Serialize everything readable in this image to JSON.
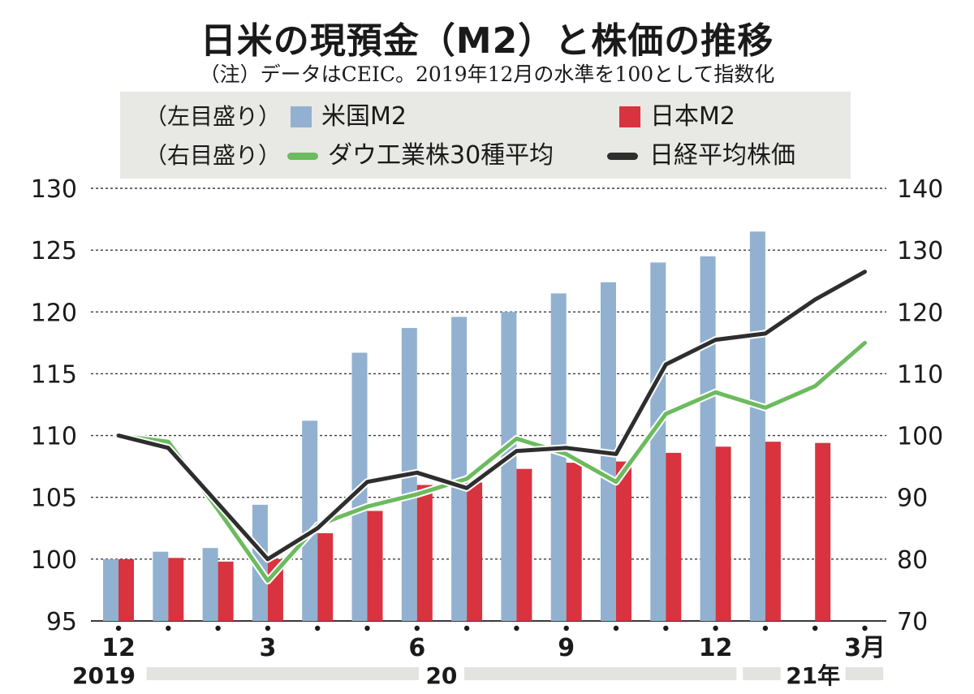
{
  "title": "日米の現預金（M2）と株価の推移",
  "note": "（注）データはCEIC。2019年12月の水準を100として指数化",
  "legend": {
    "left_axis_label": "（左目盛り）",
    "right_axis_label": "（右目盛り）",
    "us_m2": "米国M2",
    "jp_m2": "日本M2",
    "dow": "ダウ工業株30種平均",
    "nikkei": "日経平均株価"
  },
  "colors": {
    "us_m2": "#92b1d0",
    "jp_m2": "#d9333f",
    "dow": "#6cbb5e",
    "nikkei": "#2e2e2e",
    "grid": "#3a3a3a",
    "year_bar": "#e3e3df"
  },
  "chart_data": {
    "type": "bar+line",
    "title": "日米の現預金（M2）と株価の推移",
    "x": [
      "2019-12",
      "2020-01",
      "2020-02",
      "2020-03",
      "2020-04",
      "2020-05",
      "2020-06",
      "2020-07",
      "2020-08",
      "2020-09",
      "2020-10",
      "2020-11",
      "2020-12",
      "2021-01",
      "2021-02",
      "2021-03"
    ],
    "x_tick_labels": [
      {
        "index": 0,
        "label": "12"
      },
      {
        "index": 3,
        "label": "3"
      },
      {
        "index": 6,
        "label": "6"
      },
      {
        "index": 9,
        "label": "9"
      },
      {
        "index": 12,
        "label": "12"
      },
      {
        "index": 15,
        "label": "3月"
      }
    ],
    "year_labels": [
      {
        "label": "2019",
        "from": 0,
        "to": 0
      },
      {
        "label": "20",
        "from": 1,
        "to": 12
      },
      {
        "label": "21年",
        "from": 13,
        "to": 15
      }
    ],
    "left_axis": {
      "ylim": [
        95,
        130
      ],
      "ticks": [
        95,
        100,
        105,
        110,
        115,
        120,
        125,
        130
      ]
    },
    "right_axis": {
      "ylim": [
        70,
        140
      ],
      "ticks": [
        70,
        80,
        90,
        100,
        110,
        120,
        130,
        140
      ]
    },
    "bar_series": [
      {
        "name": "米国M2",
        "axis": "left",
        "values": [
          100.0,
          100.6,
          100.9,
          104.4,
          111.2,
          116.7,
          118.7,
          119.6,
          120.0,
          121.5,
          122.4,
          124.0,
          124.5,
          126.5,
          null,
          null
        ]
      },
      {
        "name": "日本M2",
        "axis": "left",
        "values": [
          100.0,
          100.1,
          99.8,
          100.0,
          102.1,
          103.9,
          106.0,
          106.2,
          107.3,
          107.8,
          107.9,
          108.6,
          109.1,
          109.5,
          109.4,
          null
        ]
      }
    ],
    "line_series": [
      {
        "name": "ダウ工業株30種平均",
        "axis": "right",
        "values": [
          100.0,
          99.0,
          88.0,
          76.5,
          85.5,
          88.5,
          90.5,
          93.0,
          99.5,
          97.0,
          92.5,
          103.5,
          107.0,
          104.5,
          108.0,
          115.0
        ]
      },
      {
        "name": "日経平均株価",
        "axis": "right",
        "values": [
          100.0,
          98.0,
          89.0,
          80.0,
          85.0,
          92.5,
          94.0,
          91.5,
          97.5,
          98.0,
          97.0,
          111.5,
          115.5,
          116.5,
          122.0,
          126.5
        ]
      }
    ],
    "grid": true,
    "legend_position": "top"
  }
}
